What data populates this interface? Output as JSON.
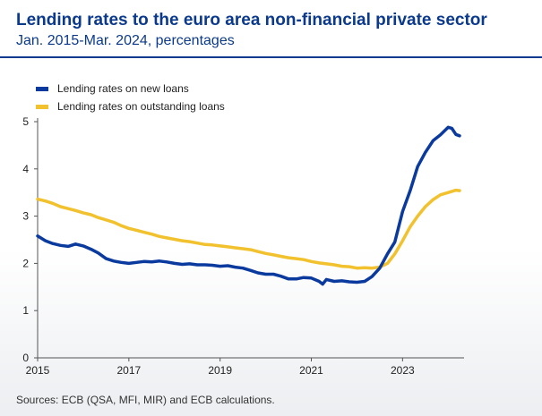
{
  "title": "Lending rates to the euro area non-financial private sector",
  "subtitle": "Jan. 2015-Mar. 2024, percentages",
  "footer": "Sources: ECB (QSA, MFI, MIR) and ECB calculations.",
  "colors": {
    "text": "#0b3a8c",
    "new_loans": "#0b3a9e",
    "outstanding": "#f2c12e"
  },
  "chart_data": {
    "type": "line",
    "xlim": [
      2015,
      2024.25
    ],
    "ylim": [
      0,
      5
    ],
    "xticks": [
      2015,
      2017,
      2019,
      2021,
      2023
    ],
    "yticks": [
      0,
      1,
      2,
      3,
      4,
      5
    ],
    "grid": false,
    "legend_position": "top-left",
    "series": [
      {
        "name": "Lending rates on new loans",
        "color": "#0b3a9e",
        "points": [
          [
            2015.0,
            2.58
          ],
          [
            2015.17,
            2.48
          ],
          [
            2015.33,
            2.42
          ],
          [
            2015.5,
            2.38
          ],
          [
            2015.67,
            2.36
          ],
          [
            2015.83,
            2.41
          ],
          [
            2016.0,
            2.37
          ],
          [
            2016.17,
            2.3
          ],
          [
            2016.33,
            2.22
          ],
          [
            2016.5,
            2.1
          ],
          [
            2016.67,
            2.05
          ],
          [
            2016.83,
            2.02
          ],
          [
            2017.0,
            2.0
          ],
          [
            2017.17,
            2.02
          ],
          [
            2017.33,
            2.04
          ],
          [
            2017.5,
            2.03
          ],
          [
            2017.67,
            2.05
          ],
          [
            2017.83,
            2.03
          ],
          [
            2018.0,
            2.0
          ],
          [
            2018.17,
            1.98
          ],
          [
            2018.33,
            1.99
          ],
          [
            2018.5,
            1.97
          ],
          [
            2018.67,
            1.97
          ],
          [
            2018.83,
            1.96
          ],
          [
            2019.0,
            1.94
          ],
          [
            2019.17,
            1.95
          ],
          [
            2019.33,
            1.92
          ],
          [
            2019.5,
            1.9
          ],
          [
            2019.67,
            1.85
          ],
          [
            2019.83,
            1.8
          ],
          [
            2020.0,
            1.77
          ],
          [
            2020.17,
            1.77
          ],
          [
            2020.33,
            1.73
          ],
          [
            2020.5,
            1.67
          ],
          [
            2020.67,
            1.67
          ],
          [
            2020.83,
            1.7
          ],
          [
            2021.0,
            1.69
          ],
          [
            2021.17,
            1.62
          ],
          [
            2021.25,
            1.56
          ],
          [
            2021.33,
            1.66
          ],
          [
            2021.5,
            1.62
          ],
          [
            2021.67,
            1.63
          ],
          [
            2021.83,
            1.61
          ],
          [
            2022.0,
            1.6
          ],
          [
            2022.17,
            1.62
          ],
          [
            2022.33,
            1.72
          ],
          [
            2022.5,
            1.9
          ],
          [
            2022.67,
            2.2
          ],
          [
            2022.83,
            2.45
          ],
          [
            2023.0,
            3.1
          ],
          [
            2023.17,
            3.55
          ],
          [
            2023.33,
            4.05
          ],
          [
            2023.5,
            4.35
          ],
          [
            2023.67,
            4.6
          ],
          [
            2023.83,
            4.72
          ],
          [
            2024.0,
            4.88
          ],
          [
            2024.08,
            4.86
          ],
          [
            2024.17,
            4.73
          ],
          [
            2024.25,
            4.7
          ]
        ]
      },
      {
        "name": "Lending rates on outstanding loans",
        "color": "#f2c12e",
        "points": [
          [
            2015.0,
            3.36
          ],
          [
            2015.17,
            3.32
          ],
          [
            2015.33,
            3.27
          ],
          [
            2015.5,
            3.2
          ],
          [
            2015.67,
            3.16
          ],
          [
            2015.83,
            3.12
          ],
          [
            2016.0,
            3.07
          ],
          [
            2016.17,
            3.03
          ],
          [
            2016.33,
            2.97
          ],
          [
            2016.5,
            2.92
          ],
          [
            2016.67,
            2.87
          ],
          [
            2016.83,
            2.8
          ],
          [
            2017.0,
            2.74
          ],
          [
            2017.17,
            2.7
          ],
          [
            2017.33,
            2.66
          ],
          [
            2017.5,
            2.62
          ],
          [
            2017.67,
            2.57
          ],
          [
            2017.83,
            2.54
          ],
          [
            2018.0,
            2.51
          ],
          [
            2018.17,
            2.48
          ],
          [
            2018.33,
            2.46
          ],
          [
            2018.5,
            2.43
          ],
          [
            2018.67,
            2.4
          ],
          [
            2018.83,
            2.39
          ],
          [
            2019.0,
            2.37
          ],
          [
            2019.17,
            2.35
          ],
          [
            2019.33,
            2.33
          ],
          [
            2019.5,
            2.31
          ],
          [
            2019.67,
            2.29
          ],
          [
            2019.83,
            2.25
          ],
          [
            2020.0,
            2.21
          ],
          [
            2020.17,
            2.18
          ],
          [
            2020.33,
            2.15
          ],
          [
            2020.5,
            2.12
          ],
          [
            2020.67,
            2.1
          ],
          [
            2020.83,
            2.08
          ],
          [
            2021.0,
            2.04
          ],
          [
            2021.17,
            2.01
          ],
          [
            2021.33,
            1.99
          ],
          [
            2021.5,
            1.97
          ],
          [
            2021.67,
            1.94
          ],
          [
            2021.83,
            1.93
          ],
          [
            2022.0,
            1.9
          ],
          [
            2022.17,
            1.91
          ],
          [
            2022.33,
            1.9
          ],
          [
            2022.5,
            1.92
          ],
          [
            2022.67,
            2.0
          ],
          [
            2022.83,
            2.2
          ],
          [
            2023.0,
            2.48
          ],
          [
            2023.17,
            2.78
          ],
          [
            2023.33,
            3.0
          ],
          [
            2023.5,
            3.2
          ],
          [
            2023.67,
            3.35
          ],
          [
            2023.83,
            3.45
          ],
          [
            2024.0,
            3.5
          ],
          [
            2024.17,
            3.55
          ],
          [
            2024.25,
            3.54
          ]
        ]
      }
    ]
  }
}
